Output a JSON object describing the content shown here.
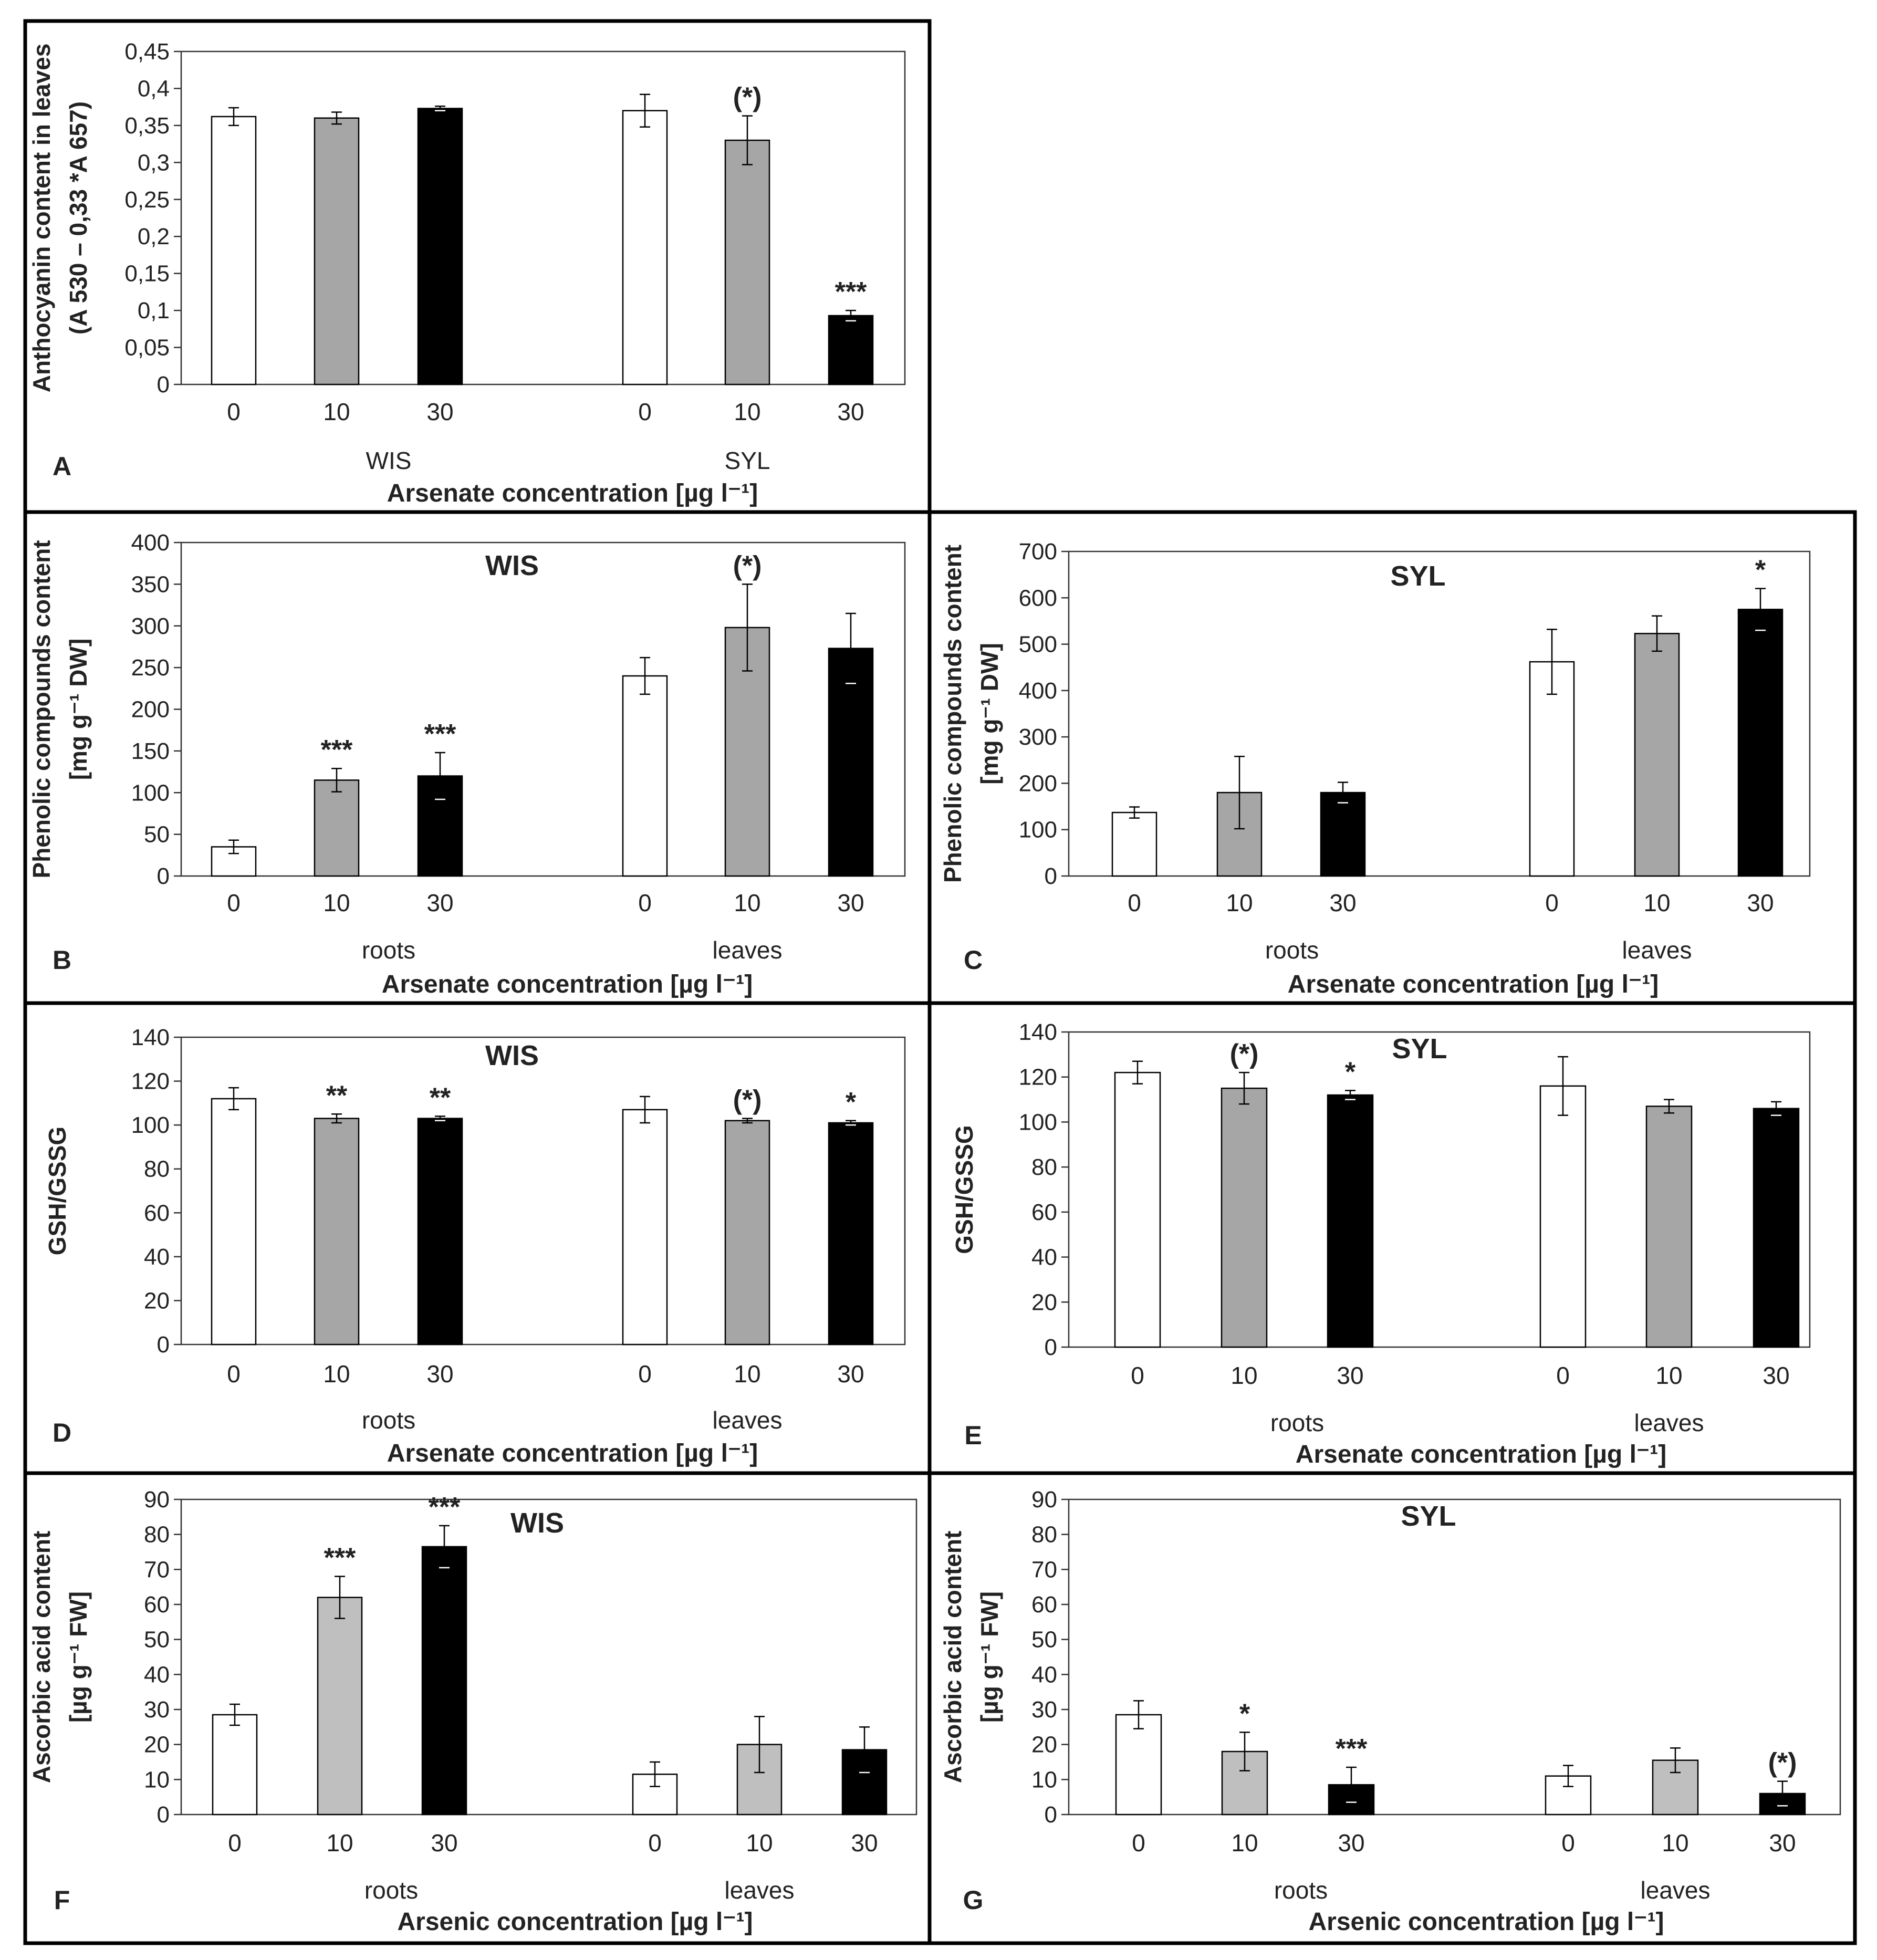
{
  "chart_data": [
    {
      "panel": "A",
      "type": "bar",
      "title": "",
      "ylabel": [
        "Anthocyanin content in leaves",
        "(A 530 – 0,33 *A 657)"
      ],
      "ylim": [
        0,
        0.45
      ],
      "yticks": [
        "0",
        "0,05",
        "0,1",
        "0,15",
        "0,2",
        "0,25",
        "0,3",
        "0,35",
        "0,4",
        "0,45"
      ],
      "categories": [
        "0",
        "10",
        "30",
        "0",
        "10",
        "30"
      ],
      "groups": [
        "WIS",
        "SYL"
      ],
      "values": [
        0.362,
        0.36,
        0.373,
        0.37,
        0.33,
        0.093
      ],
      "errors": [
        0.012,
        0.008,
        0.003,
        0.022,
        0.033,
        0.007
      ],
      "significance": [
        "",
        "",
        "",
        "",
        "(*)",
        "***"
      ],
      "colors": [
        "#ffffff",
        "#a6a6a6",
        "#000000",
        "#ffffff",
        "#a6a6a6",
        "#000000"
      ],
      "xlabel": "Arsenate concentration [µg l⁻¹]"
    },
    {
      "panel": "B",
      "type": "bar",
      "title": "WIS",
      "ylabel": [
        "Phenolic compounds content",
        "[mg g⁻¹ DW]"
      ],
      "ylim": [
        0,
        400
      ],
      "yticks": [
        "0",
        "50",
        "100",
        "150",
        "200",
        "250",
        "300",
        "350",
        "400"
      ],
      "categories": [
        "0",
        "10",
        "30",
        "0",
        "10",
        "30"
      ],
      "groups": [
        "roots",
        "leaves"
      ],
      "values": [
        35,
        115,
        120,
        240,
        298,
        273
      ],
      "errors": [
        8,
        14,
        28,
        22,
        52,
        42
      ],
      "significance": [
        "",
        "***",
        "***",
        "",
        "(*)",
        ""
      ],
      "colors": [
        "#ffffff",
        "#a6a6a6",
        "#000000",
        "#ffffff",
        "#a6a6a6",
        "#000000"
      ],
      "xlabel": "Arsenate concentration [µg l⁻¹]"
    },
    {
      "panel": "C",
      "type": "bar",
      "title": "SYL",
      "ylabel": [
        "Phenolic compounds content",
        "[mg g⁻¹ DW]"
      ],
      "ylim": [
        0,
        700
      ],
      "yticks": [
        "0",
        "100",
        "200",
        "300",
        "400",
        "500",
        "600",
        "700"
      ],
      "categories": [
        "0",
        "10",
        "30",
        "0",
        "10",
        "30"
      ],
      "groups": [
        "roots",
        "leaves"
      ],
      "values": [
        137,
        180,
        180,
        462,
        523,
        575
      ],
      "errors": [
        12,
        78,
        22,
        70,
        38,
        45
      ],
      "significance": [
        "",
        "",
        "",
        "",
        "",
        "*"
      ],
      "colors": [
        "#ffffff",
        "#a6a6a6",
        "#000000",
        "#ffffff",
        "#a6a6a6",
        "#000000"
      ],
      "xlabel": "Arsenate concentration [µg l⁻¹]"
    },
    {
      "panel": "D",
      "type": "bar",
      "title": "WIS",
      "ylabel": [
        "GSH/GSSG"
      ],
      "ylim": [
        0,
        140
      ],
      "yticks": [
        "0",
        "20",
        "40",
        "60",
        "80",
        "100",
        "120",
        "140"
      ],
      "categories": [
        "0",
        "10",
        "30",
        "0",
        "10",
        "30"
      ],
      "groups": [
        "roots",
        "leaves"
      ],
      "values": [
        112,
        103,
        103,
        107,
        102,
        101
      ],
      "errors": [
        5,
        2,
        1,
        6,
        1,
        1
      ],
      "significance": [
        "",
        "**",
        "**",
        "",
        "(*)",
        "*"
      ],
      "colors": [
        "#ffffff",
        "#a6a6a6",
        "#000000",
        "#ffffff",
        "#a6a6a6",
        "#000000"
      ],
      "xlabel": "Arsenate concentration [µg l⁻¹]"
    },
    {
      "panel": "E",
      "type": "bar",
      "title": "SYL",
      "ylabel": [
        "GSH/GSSG"
      ],
      "ylim": [
        0,
        140
      ],
      "yticks": [
        "0",
        "20",
        "40",
        "60",
        "80",
        "100",
        "120",
        "140"
      ],
      "categories": [
        "0",
        "10",
        "30",
        "0",
        "10",
        "30"
      ],
      "groups": [
        "roots",
        "leaves"
      ],
      "values": [
        122,
        115,
        112,
        116,
        107,
        106
      ],
      "errors": [
        5,
        7,
        2,
        13,
        3,
        3
      ],
      "significance": [
        "",
        "(*)",
        "*",
        "",
        "",
        ""
      ],
      "colors": [
        "#ffffff",
        "#a6a6a6",
        "#000000",
        "#ffffff",
        "#a6a6a6",
        "#000000"
      ],
      "xlabel": "Arsenate concentration [µg l⁻¹]"
    },
    {
      "panel": "F",
      "type": "bar",
      "title": "WIS",
      "ylabel": [
        "Ascorbic acid content",
        "[µg g⁻¹ FW]"
      ],
      "ylim": [
        0,
        90
      ],
      "yticks": [
        "0",
        "10",
        "20",
        "30",
        "40",
        "50",
        "60",
        "70",
        "80",
        "90"
      ],
      "categories": [
        "0",
        "10",
        "30",
        "0",
        "10",
        "30"
      ],
      "groups": [
        "roots",
        "leaves"
      ],
      "values": [
        28.5,
        62,
        76.5,
        11.5,
        20,
        18.5
      ],
      "errors": [
        3,
        6,
        6,
        3.5,
        8,
        6.5
      ],
      "significance": [
        "",
        "***",
        "***",
        "",
        "",
        ""
      ],
      "colors": [
        "#ffffff",
        "#bfbfbf",
        "#000000",
        "#ffffff",
        "#bfbfbf",
        "#000000"
      ],
      "xlabel": "Arsenic concentration [µg l⁻¹]"
    },
    {
      "panel": "G",
      "type": "bar",
      "title": "SYL",
      "ylabel": [
        "Ascorbic acid content",
        "[µg g⁻¹ FW]"
      ],
      "ylim": [
        0,
        90
      ],
      "yticks": [
        "0",
        "10",
        "20",
        "30",
        "40",
        "50",
        "60",
        "70",
        "80",
        "90"
      ],
      "categories": [
        "0",
        "10",
        "30",
        "0",
        "10",
        "30"
      ],
      "groups": [
        "roots",
        "leaves"
      ],
      "values": [
        28.5,
        18,
        8.5,
        11,
        15.5,
        6
      ],
      "errors": [
        4,
        5.5,
        5,
        3,
        3.5,
        3.5
      ],
      "significance": [
        "",
        "*",
        "***",
        "",
        "",
        "(*)"
      ],
      "colors": [
        "#ffffff",
        "#bfbfbf",
        "#000000",
        "#ffffff",
        "#bfbfbf",
        "#000000"
      ],
      "xlabel": "Arsenic concentration [µg l⁻¹]"
    }
  ]
}
